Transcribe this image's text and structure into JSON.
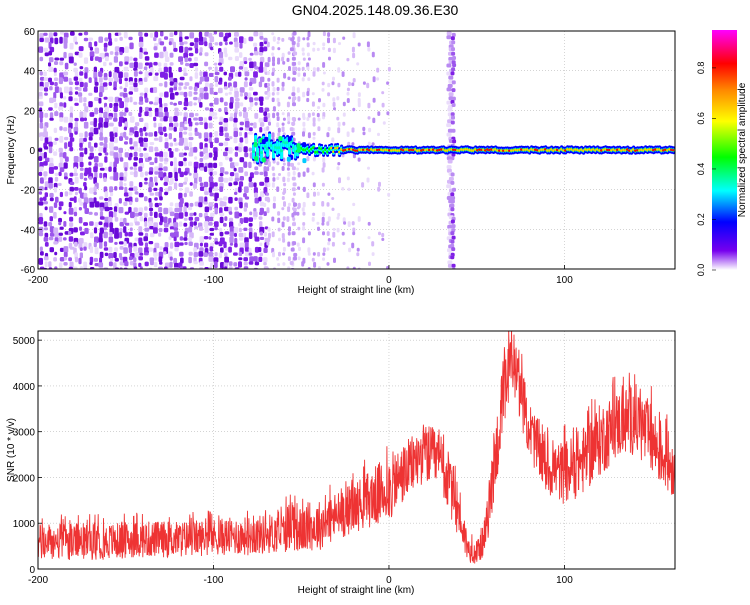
{
  "page_title": "GN04.2025.148.09.36.E30",
  "chart_data": [
    {
      "type": "heatmap",
      "title": "GN04.2025.148.09.36.E30",
      "xlabel": "Height of straight line (km)",
      "ylabel": "Frequency (Hz)",
      "xlim": [
        -200,
        163
      ],
      "ylim": [
        -60,
        60
      ],
      "xticks": [
        -200,
        -100,
        0,
        100
      ],
      "xtick_labels": [
        "-200",
        "-100",
        "0",
        "100"
      ],
      "yticks": [
        -60,
        -40,
        -20,
        0,
        20,
        40,
        60
      ],
      "ytick_labels": [
        "-60",
        "-40",
        "-20",
        "0",
        "20",
        "40",
        "60"
      ],
      "grid": true,
      "colorbar": {
        "label": "Normalized spectral amplitude",
        "range": [
          0,
          0.95
        ],
        "ticks": [
          0.0,
          0.2,
          0.4,
          0.6,
          0.8
        ],
        "tick_labels": [
          "0.0",
          "0.2",
          "0.4",
          "0.6",
          "0.8"
        ],
        "colors": [
          "#ffffff",
          "#7700ee",
          "#0000ff",
          "#00ffff",
          "#00ff00",
          "#ffff00",
          "#ff8800",
          "#ff0000",
          "#ff00ff"
        ]
      },
      "features": {
        "noise_region_x": [
          -200,
          -70
        ],
        "sparse_noise_x": [
          -70,
          0
        ],
        "ridge_start_x": -78,
        "ridge_freq_hz": 0,
        "vertical_stripe_x": 36,
        "secondary_stripe_x": -55
      }
    },
    {
      "type": "line",
      "xlabel": "Height of straight line (km)",
      "ylabel": "SNR (10 * v/v)",
      "xlim": [
        -200,
        163
      ],
      "ylim": [
        0,
        5200
      ],
      "xticks": [
        -200,
        -100,
        0,
        100
      ],
      "xtick_labels": [
        "-200",
        "-100",
        "0",
        "100"
      ],
      "yticks": [
        0,
        1000,
        2000,
        3000,
        4000,
        5000
      ],
      "ytick_labels": [
        "0",
        "1000",
        "2000",
        "3000",
        "4000",
        "5000"
      ],
      "grid": true,
      "color": "#ee3333",
      "envelope": {
        "x": [
          -200,
          -180,
          -160,
          -140,
          -120,
          -100,
          -80,
          -60,
          -55,
          -50,
          -40,
          -30,
          -20,
          -10,
          0,
          10,
          20,
          30,
          40,
          45,
          50,
          55,
          60,
          65,
          70,
          75,
          80,
          90,
          100,
          110,
          120,
          130,
          140,
          150,
          163
        ],
        "lower": [
          150,
          200,
          200,
          250,
          250,
          300,
          300,
          350,
          400,
          350,
          400,
          600,
          800,
          900,
          1000,
          1500,
          1900,
          1600,
          600,
          150,
          100,
          300,
          1500,
          2700,
          3900,
          3200,
          2400,
          1600,
          1400,
          1600,
          2000,
          2400,
          2500,
          2000,
          1500
        ],
        "upper": [
          1000,
          1000,
          1000,
          1050,
          1050,
          1100,
          1150,
          1250,
          1700,
          1300,
          1500,
          1700,
          1900,
          2200,
          2500,
          2800,
          3200,
          3000,
          1900,
          700,
          600,
          1200,
          3000,
          4600,
          5150,
          4500,
          3700,
          2800,
          2800,
          3100,
          3600,
          3900,
          4100,
          3600,
          2800
        ]
      }
    }
  ]
}
